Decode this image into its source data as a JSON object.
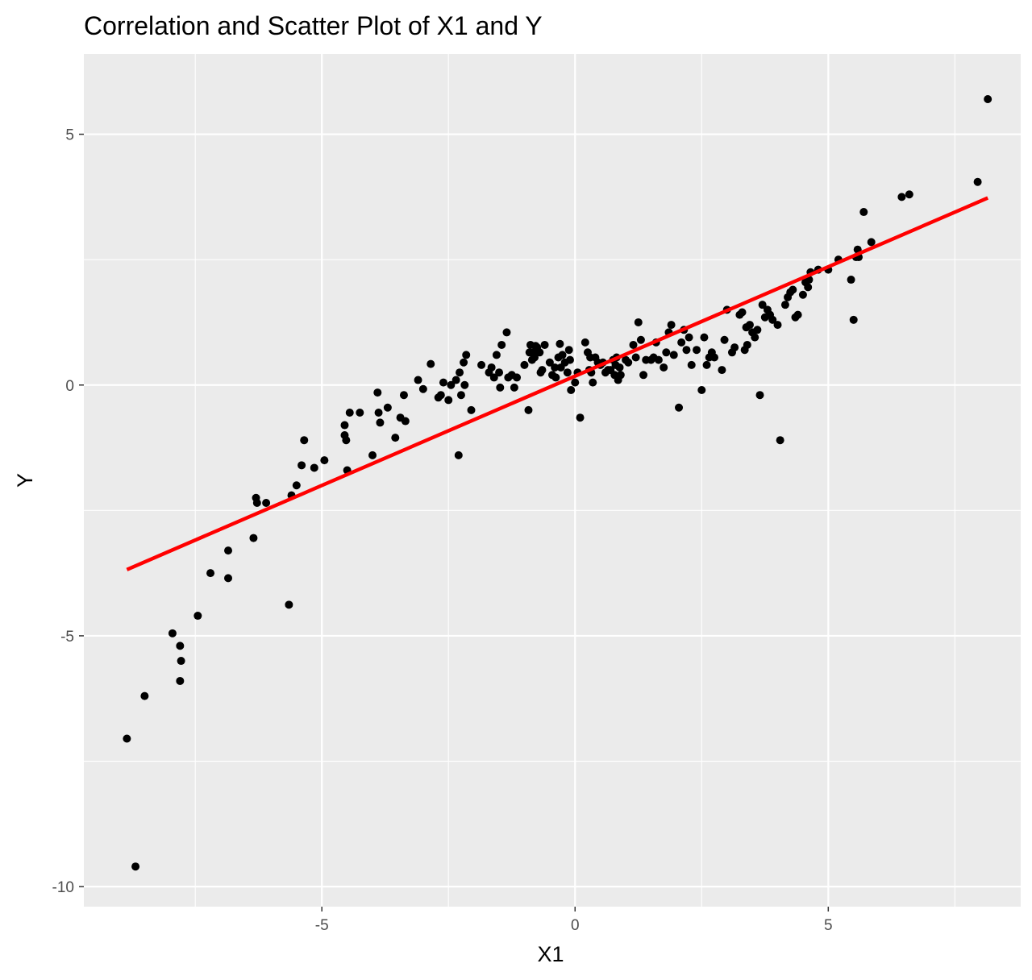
{
  "chart_data": {
    "type": "scatter",
    "title": "Correlation and Scatter Plot of X1 and Y",
    "xlabel": "X1",
    "ylabel": "Y",
    "xlim": [
      -9.7,
      8.8
    ],
    "ylim": [
      -10.4,
      6.6
    ],
    "x_ticks": [
      -5,
      0,
      5
    ],
    "x_tick_labels": [
      "-5",
      "0",
      "5"
    ],
    "y_ticks": [
      -10,
      -5,
      0,
      5
    ],
    "y_tick_labels": [
      "-10",
      "-5",
      "0",
      "5"
    ],
    "grid": true,
    "legend": "none",
    "colors": {
      "panel": "#ebebeb",
      "grid": "#ffffff",
      "points": "#000000",
      "fit_line": "#ff0000"
    },
    "fit_line": {
      "x": [
        -8.85,
        8.15
      ],
      "y": [
        -3.68,
        3.73
      ]
    },
    "points": [
      [
        -8.85,
        -7.05
      ],
      [
        -8.68,
        -9.6
      ],
      [
        -8.5,
        -6.2
      ],
      [
        -7.95,
        -4.95
      ],
      [
        -7.8,
        -5.2
      ],
      [
        -7.78,
        -5.5
      ],
      [
        -7.8,
        -5.9
      ],
      [
        -7.45,
        -4.6
      ],
      [
        -7.2,
        -3.75
      ],
      [
        -6.85,
        -3.85
      ],
      [
        -6.85,
        -3.3
      ],
      [
        -6.35,
        -3.05
      ],
      [
        -6.3,
        -2.25
      ],
      [
        -6.28,
        -2.35
      ],
      [
        -6.1,
        -2.35
      ],
      [
        -5.65,
        -4.38
      ],
      [
        -5.6,
        -2.2
      ],
      [
        -5.5,
        -2.0
      ],
      [
        -5.4,
        -1.6
      ],
      [
        -5.35,
        -1.1
      ],
      [
        -5.15,
        -1.65
      ],
      [
        -4.95,
        -1.5
      ],
      [
        -4.55,
        -0.8
      ],
      [
        -4.55,
        -1.0
      ],
      [
        -4.52,
        -1.1
      ],
      [
        -4.5,
        -1.7
      ],
      [
        -4.45,
        -0.55
      ],
      [
        -4.25,
        -0.55
      ],
      [
        -4.0,
        -1.4
      ],
      [
        -3.9,
        -0.15
      ],
      [
        -3.88,
        -0.55
      ],
      [
        -3.85,
        -0.75
      ],
      [
        -3.7,
        -0.45
      ],
      [
        -3.55,
        -1.05
      ],
      [
        -3.45,
        -0.65
      ],
      [
        -3.38,
        -0.2
      ],
      [
        -3.35,
        -0.72
      ],
      [
        -3.1,
        0.1
      ],
      [
        -3.0,
        -0.08
      ],
      [
        -2.85,
        0.42
      ],
      [
        -2.7,
        -0.25
      ],
      [
        -2.65,
        -0.2
      ],
      [
        -2.6,
        0.05
      ],
      [
        -2.5,
        -0.3
      ],
      [
        -2.45,
        0.0
      ],
      [
        -2.35,
        0.1
      ],
      [
        -2.3,
        -1.4
      ],
      [
        -2.28,
        0.25
      ],
      [
        -2.25,
        -0.2
      ],
      [
        -2.2,
        0.45
      ],
      [
        -2.18,
        0.0
      ],
      [
        -2.15,
        0.6
      ],
      [
        -2.05,
        -0.5
      ],
      [
        -1.85,
        0.4
      ],
      [
        -1.7,
        0.25
      ],
      [
        -1.65,
        0.35
      ],
      [
        -1.6,
        0.15
      ],
      [
        -1.55,
        0.6
      ],
      [
        -1.5,
        0.25
      ],
      [
        -1.48,
        -0.05
      ],
      [
        -1.45,
        0.8
      ],
      [
        -1.35,
        1.05
      ],
      [
        -1.32,
        0.15
      ],
      [
        -1.25,
        0.2
      ],
      [
        -1.2,
        -0.05
      ],
      [
        -1.15,
        0.15
      ],
      [
        -1.0,
        0.4
      ],
      [
        -0.92,
        -0.5
      ],
      [
        -0.9,
        0.65
      ],
      [
        -0.88,
        0.8
      ],
      [
        -0.85,
        0.5
      ],
      [
        -0.82,
        0.65
      ],
      [
        -0.8,
        0.55
      ],
      [
        -0.78,
        0.78
      ],
      [
        -0.75,
        0.75
      ],
      [
        -0.7,
        0.65
      ],
      [
        -0.68,
        0.25
      ],
      [
        -0.65,
        0.3
      ],
      [
        -0.6,
        0.8
      ],
      [
        -0.5,
        0.45
      ],
      [
        -0.45,
        0.2
      ],
      [
        -0.4,
        0.35
      ],
      [
        -0.38,
        0.15
      ],
      [
        -0.33,
        0.55
      ],
      [
        -0.3,
        0.82
      ],
      [
        -0.28,
        0.35
      ],
      [
        -0.25,
        0.6
      ],
      [
        -0.2,
        0.45
      ],
      [
        -0.15,
        0.25
      ],
      [
        -0.12,
        0.7
      ],
      [
        -0.1,
        0.5
      ],
      [
        -0.08,
        -0.1
      ],
      [
        0.0,
        0.05
      ],
      [
        0.05,
        0.25
      ],
      [
        0.1,
        -0.65
      ],
      [
        0.2,
        0.85
      ],
      [
        0.25,
        0.65
      ],
      [
        0.28,
        0.3
      ],
      [
        0.3,
        0.55
      ],
      [
        0.32,
        0.25
      ],
      [
        0.35,
        0.05
      ],
      [
        0.4,
        0.55
      ],
      [
        0.45,
        0.45
      ],
      [
        0.5,
        0.4
      ],
      [
        0.55,
        0.45
      ],
      [
        0.6,
        0.25
      ],
      [
        0.65,
        0.3
      ],
      [
        0.7,
        0.3
      ],
      [
        0.75,
        0.5
      ],
      [
        0.78,
        0.2
      ],
      [
        0.8,
        0.4
      ],
      [
        0.82,
        0.55
      ],
      [
        0.85,
        0.1
      ],
      [
        0.88,
        0.35
      ],
      [
        0.9,
        0.2
      ],
      [
        1.0,
        0.5
      ],
      [
        1.05,
        0.45
      ],
      [
        1.15,
        0.8
      ],
      [
        1.2,
        0.55
      ],
      [
        1.25,
        1.25
      ],
      [
        1.3,
        0.9
      ],
      [
        1.35,
        0.2
      ],
      [
        1.4,
        0.5
      ],
      [
        1.5,
        0.5
      ],
      [
        1.55,
        0.55
      ],
      [
        1.6,
        0.85
      ],
      [
        1.65,
        0.5
      ],
      [
        1.75,
        0.35
      ],
      [
        1.8,
        0.65
      ],
      [
        1.85,
        1.05
      ],
      [
        1.9,
        1.2
      ],
      [
        1.95,
        0.6
      ],
      [
        2.05,
        -0.45
      ],
      [
        2.1,
        0.85
      ],
      [
        2.15,
        1.1
      ],
      [
        2.2,
        0.7
      ],
      [
        2.25,
        0.95
      ],
      [
        2.3,
        0.4
      ],
      [
        2.4,
        0.7
      ],
      [
        2.5,
        -0.1
      ],
      [
        2.55,
        0.95
      ],
      [
        2.6,
        0.4
      ],
      [
        2.65,
        0.55
      ],
      [
        2.7,
        0.65
      ],
      [
        2.75,
        0.55
      ],
      [
        2.9,
        0.3
      ],
      [
        2.95,
        0.9
      ],
      [
        3.0,
        1.5
      ],
      [
        3.1,
        0.65
      ],
      [
        3.15,
        0.75
      ],
      [
        3.25,
        1.4
      ],
      [
        3.3,
        1.45
      ],
      [
        3.35,
        0.7
      ],
      [
        3.38,
        1.15
      ],
      [
        3.4,
        0.8
      ],
      [
        3.45,
        1.2
      ],
      [
        3.5,
        1.05
      ],
      [
        3.55,
        0.95
      ],
      [
        3.6,
        1.1
      ],
      [
        3.65,
        -0.2
      ],
      [
        3.7,
        1.6
      ],
      [
        3.75,
        1.35
      ],
      [
        3.8,
        1.5
      ],
      [
        3.85,
        1.4
      ],
      [
        3.9,
        1.3
      ],
      [
        4.0,
        1.2
      ],
      [
        4.05,
        -1.1
      ],
      [
        4.15,
        1.6
      ],
      [
        4.2,
        1.75
      ],
      [
        4.25,
        1.85
      ],
      [
        4.3,
        1.9
      ],
      [
        4.35,
        1.35
      ],
      [
        4.4,
        1.4
      ],
      [
        4.5,
        1.8
      ],
      [
        4.55,
        2.05
      ],
      [
        4.6,
        1.95
      ],
      [
        4.62,
        2.1
      ],
      [
        4.65,
        2.25
      ],
      [
        4.8,
        2.3
      ],
      [
        5.0,
        2.3
      ],
      [
        5.2,
        2.5
      ],
      [
        5.45,
        2.1
      ],
      [
        5.5,
        1.3
      ],
      [
        5.55,
        2.55
      ],
      [
        5.58,
        2.7
      ],
      [
        5.6,
        2.55
      ],
      [
        5.7,
        3.45
      ],
      [
        5.85,
        2.85
      ],
      [
        6.45,
        3.75
      ],
      [
        6.6,
        3.8
      ],
      [
        7.95,
        4.05
      ],
      [
        8.15,
        5.7
      ]
    ]
  }
}
